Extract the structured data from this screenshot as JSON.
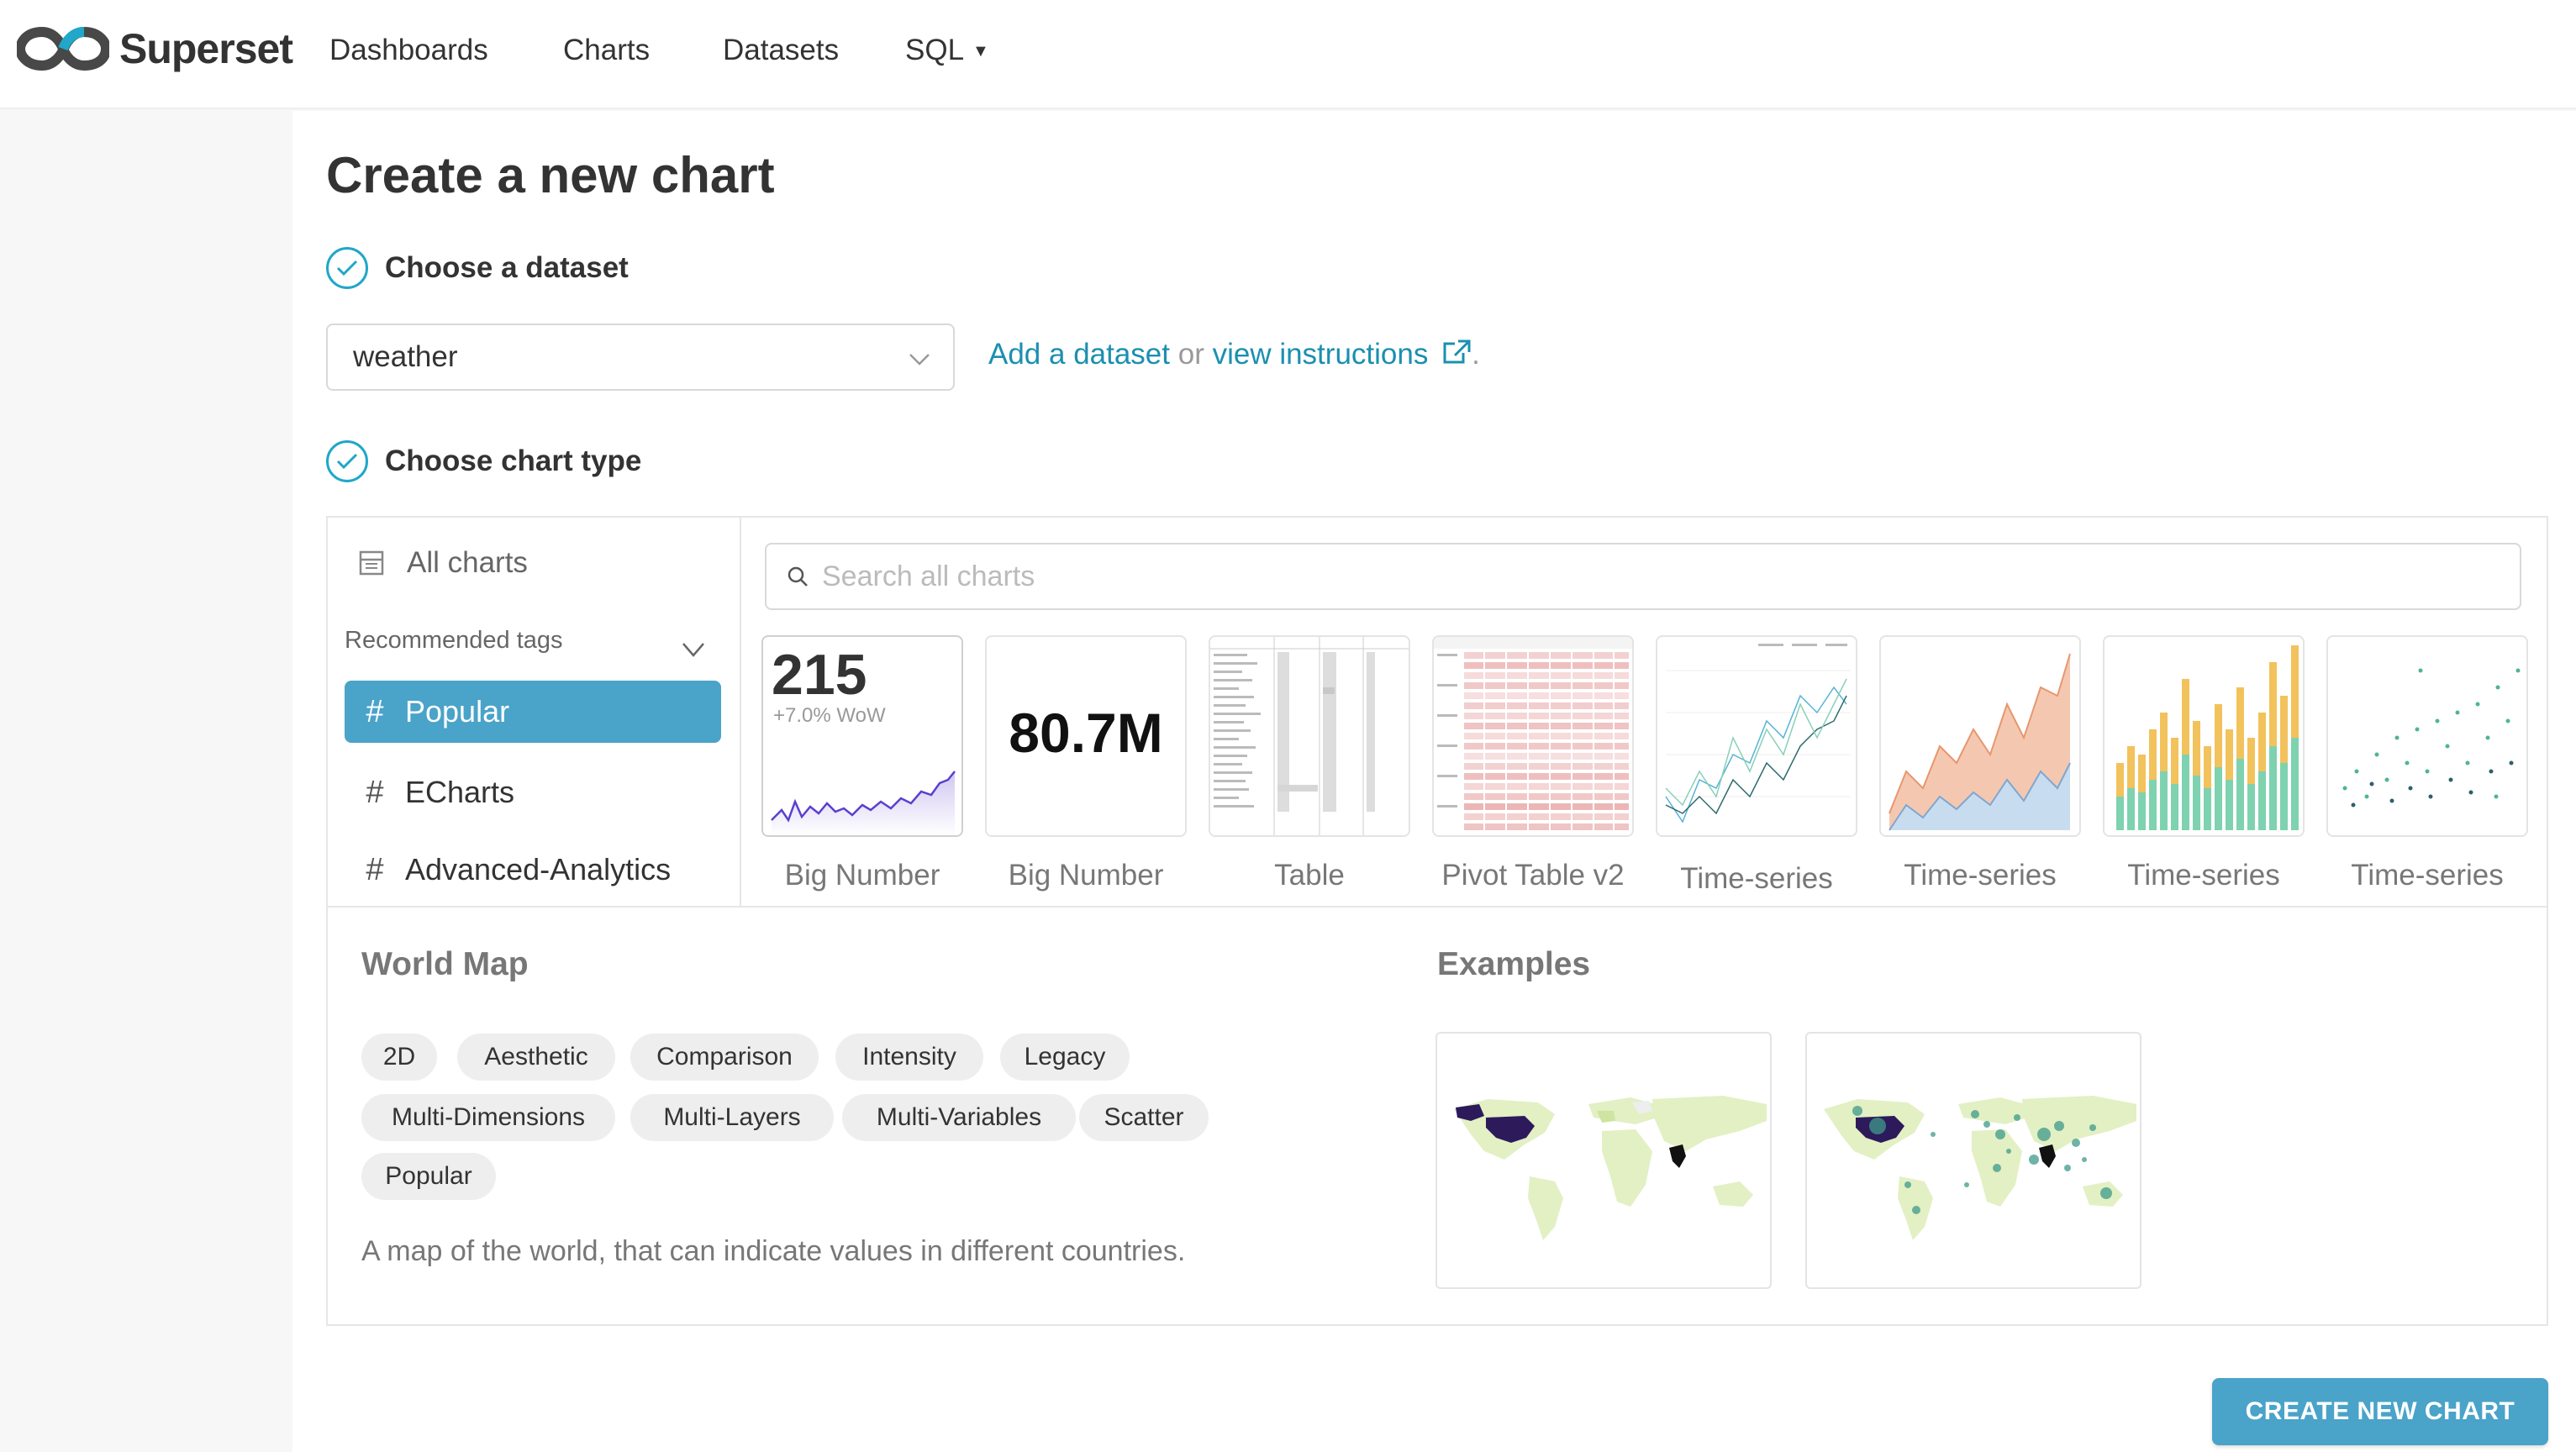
{
  "brand": {
    "name": "Superset"
  },
  "nav": {
    "items": [
      {
        "label": "Dashboards"
      },
      {
        "label": "Charts"
      },
      {
        "label": "Datasets"
      },
      {
        "label": "SQL"
      }
    ]
  },
  "page": {
    "title": "Create a new chart"
  },
  "steps": {
    "dataset": {
      "label": "Choose a dataset",
      "selected": "weather",
      "add_link": "Add a dataset",
      "or_text": " or ",
      "instructions_link": "view instructions",
      "trailing": "."
    },
    "chart_type": {
      "label": "Choose chart type"
    }
  },
  "sidebar": {
    "all_charts": "All charts",
    "recommended_tags": "Recommended tags",
    "tags": [
      {
        "label": "Popular",
        "active": true
      },
      {
        "label": "ECharts",
        "active": false
      },
      {
        "label": "Advanced-Analytics",
        "active": false
      }
    ]
  },
  "search": {
    "placeholder": "Search all charts",
    "value": ""
  },
  "gallery": [
    {
      "label": "Big Number",
      "big_value": "215",
      "sub": "+7.0% WoW"
    },
    {
      "label": "Big Number",
      "big_value": "80.7M"
    },
    {
      "label": "Table"
    },
    {
      "label": "Pivot Table v2"
    },
    {
      "label": "Time-series"
    },
    {
      "label": "Time-series"
    },
    {
      "label": "Time-series"
    },
    {
      "label": "Time-series"
    }
  ],
  "details": {
    "name": "World Map",
    "tags": [
      "2D",
      "Aesthetic",
      "Comparison",
      "Intensity",
      "Legacy",
      "Multi-Dimensions",
      "Multi-Layers",
      "Multi-Variables",
      "Scatter",
      "Popular"
    ],
    "description": "A map of the world, that can indicate values in different countries.",
    "examples_title": "Examples"
  },
  "actions": {
    "create_label": "CREATE NEW CHART"
  },
  "colors": {
    "accent": "#4aa3c9",
    "link": "#1b8fb0",
    "check": "#20a7c9"
  }
}
